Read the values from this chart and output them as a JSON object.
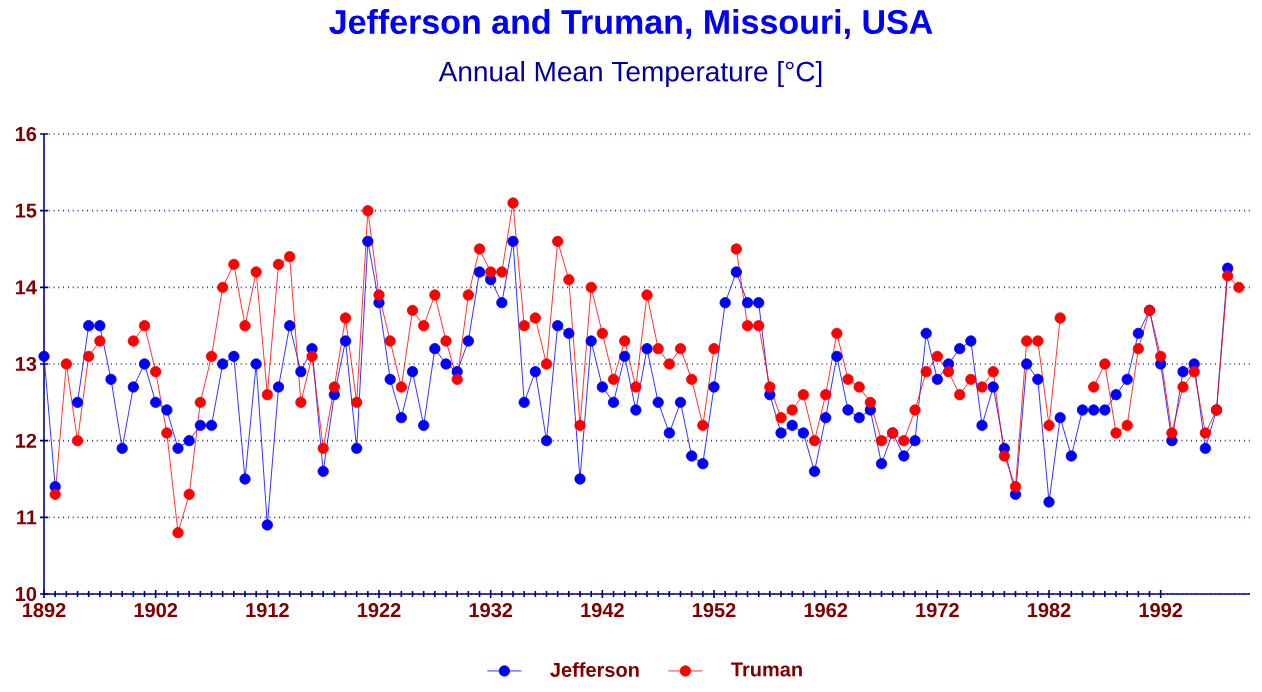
{
  "chart_data": {
    "type": "line",
    "title": "Jefferson and Truman, Missouri, USA",
    "subtitle": "Annual Mean Temperature [°C]",
    "x": [
      1892,
      1893,
      1894,
      1895,
      1896,
      1897,
      1898,
      1899,
      1900,
      1901,
      1902,
      1903,
      1904,
      1905,
      1906,
      1907,
      1908,
      1909,
      1910,
      1911,
      1912,
      1913,
      1914,
      1915,
      1916,
      1917,
      1918,
      1919,
      1920,
      1921,
      1922,
      1923,
      1924,
      1925,
      1926,
      1927,
      1928,
      1929,
      1930,
      1931,
      1932,
      1933,
      1934,
      1935,
      1936,
      1937,
      1938,
      1939,
      1940,
      1941,
      1942,
      1943,
      1944,
      1945,
      1946,
      1947,
      1948,
      1949,
      1950,
      1951,
      1952,
      1953,
      1954,
      1955,
      1956,
      1957,
      1958,
      1959,
      1960,
      1961,
      1962,
      1963,
      1964,
      1965,
      1966,
      1967,
      1968,
      1969,
      1970,
      1971,
      1972,
      1973,
      1974,
      1975,
      1976,
      1977,
      1978,
      1979,
      1980,
      1981,
      1982,
      1983,
      1984,
      1985,
      1986,
      1987,
      1988,
      1989,
      1990,
      1991,
      1992,
      1993,
      1994,
      1995,
      1996,
      1997,
      1998,
      1999
    ],
    "series": [
      {
        "name": "Jefferson",
        "color": "#0000ff",
        "values": [
          13.1,
          11.4,
          null,
          12.5,
          13.5,
          13.5,
          12.8,
          11.9,
          12.7,
          13.0,
          12.5,
          12.4,
          11.9,
          12.0,
          12.2,
          12.2,
          13.0,
          13.1,
          11.5,
          13.0,
          10.9,
          12.7,
          13.5,
          12.9,
          13.2,
          11.6,
          12.6,
          13.3,
          11.9,
          14.6,
          13.8,
          12.8,
          12.3,
          12.9,
          12.2,
          13.2,
          13.0,
          12.9,
          13.3,
          14.2,
          14.1,
          13.8,
          14.6,
          12.5,
          12.9,
          12.0,
          13.5,
          13.4,
          11.5,
          13.3,
          12.7,
          12.5,
          13.1,
          12.4,
          13.2,
          12.5,
          12.1,
          12.5,
          11.8,
          11.7,
          12.7,
          13.8,
          14.2,
          13.8,
          13.8,
          12.6,
          12.1,
          12.2,
          12.1,
          11.6,
          12.3,
          13.1,
          12.4,
          12.3,
          12.4,
          11.7,
          12.1,
          11.8,
          12.0,
          13.4,
          12.8,
          13.0,
          13.2,
          13.3,
          12.2,
          12.7,
          11.9,
          11.3,
          13.0,
          12.8,
          11.2,
          12.3,
          11.8,
          12.4,
          12.4,
          12.4,
          12.6,
          12.8,
          13.4,
          13.7,
          13.0,
          12.0,
          12.9,
          13.0,
          11.9,
          12.4,
          14.25,
          null
        ]
      },
      {
        "name": "Truman",
        "color": "#ff0000",
        "values": [
          null,
          11.3,
          13.0,
          12.0,
          13.1,
          13.3,
          null,
          null,
          13.3,
          13.5,
          12.9,
          12.1,
          10.8,
          11.3,
          12.5,
          13.1,
          14.0,
          14.3,
          13.5,
          14.2,
          12.6,
          14.3,
          14.4,
          12.5,
          13.1,
          11.9,
          12.7,
          13.6,
          12.5,
          15.0,
          13.9,
          13.3,
          12.7,
          13.7,
          13.5,
          13.9,
          13.3,
          12.8,
          13.9,
          14.5,
          14.2,
          14.2,
          15.1,
          13.5,
          13.6,
          13.0,
          14.6,
          14.1,
          12.2,
          14.0,
          13.4,
          12.8,
          13.3,
          12.7,
          13.9,
          13.2,
          13.0,
          13.2,
          12.8,
          12.2,
          13.2,
          null,
          14.5,
          13.5,
          13.5,
          12.7,
          12.3,
          12.4,
          12.6,
          12.0,
          12.6,
          13.4,
          12.8,
          12.7,
          12.5,
          12.0,
          12.1,
          12.0,
          12.4,
          12.9,
          13.1,
          12.9,
          12.6,
          12.8,
          12.7,
          12.9,
          11.8,
          11.4,
          13.3,
          13.3,
          12.2,
          13.6,
          null,
          null,
          12.7,
          13.0,
          12.1,
          12.2,
          13.2,
          13.7,
          13.1,
          12.1,
          12.7,
          12.9,
          12.1,
          12.4,
          14.15,
          14.0
        ]
      }
    ],
    "xlim": [
      1892,
      2000
    ],
    "xticks": [
      1892,
      1902,
      1912,
      1922,
      1932,
      1942,
      1952,
      1962,
      1972,
      1982,
      1992
    ],
    "ylim": [
      10,
      16
    ],
    "yticks": [
      10,
      11,
      12,
      13,
      14,
      15,
      16
    ],
    "grid": "y",
    "legend": "bottom",
    "marker": "circle",
    "line_style": "solid"
  }
}
